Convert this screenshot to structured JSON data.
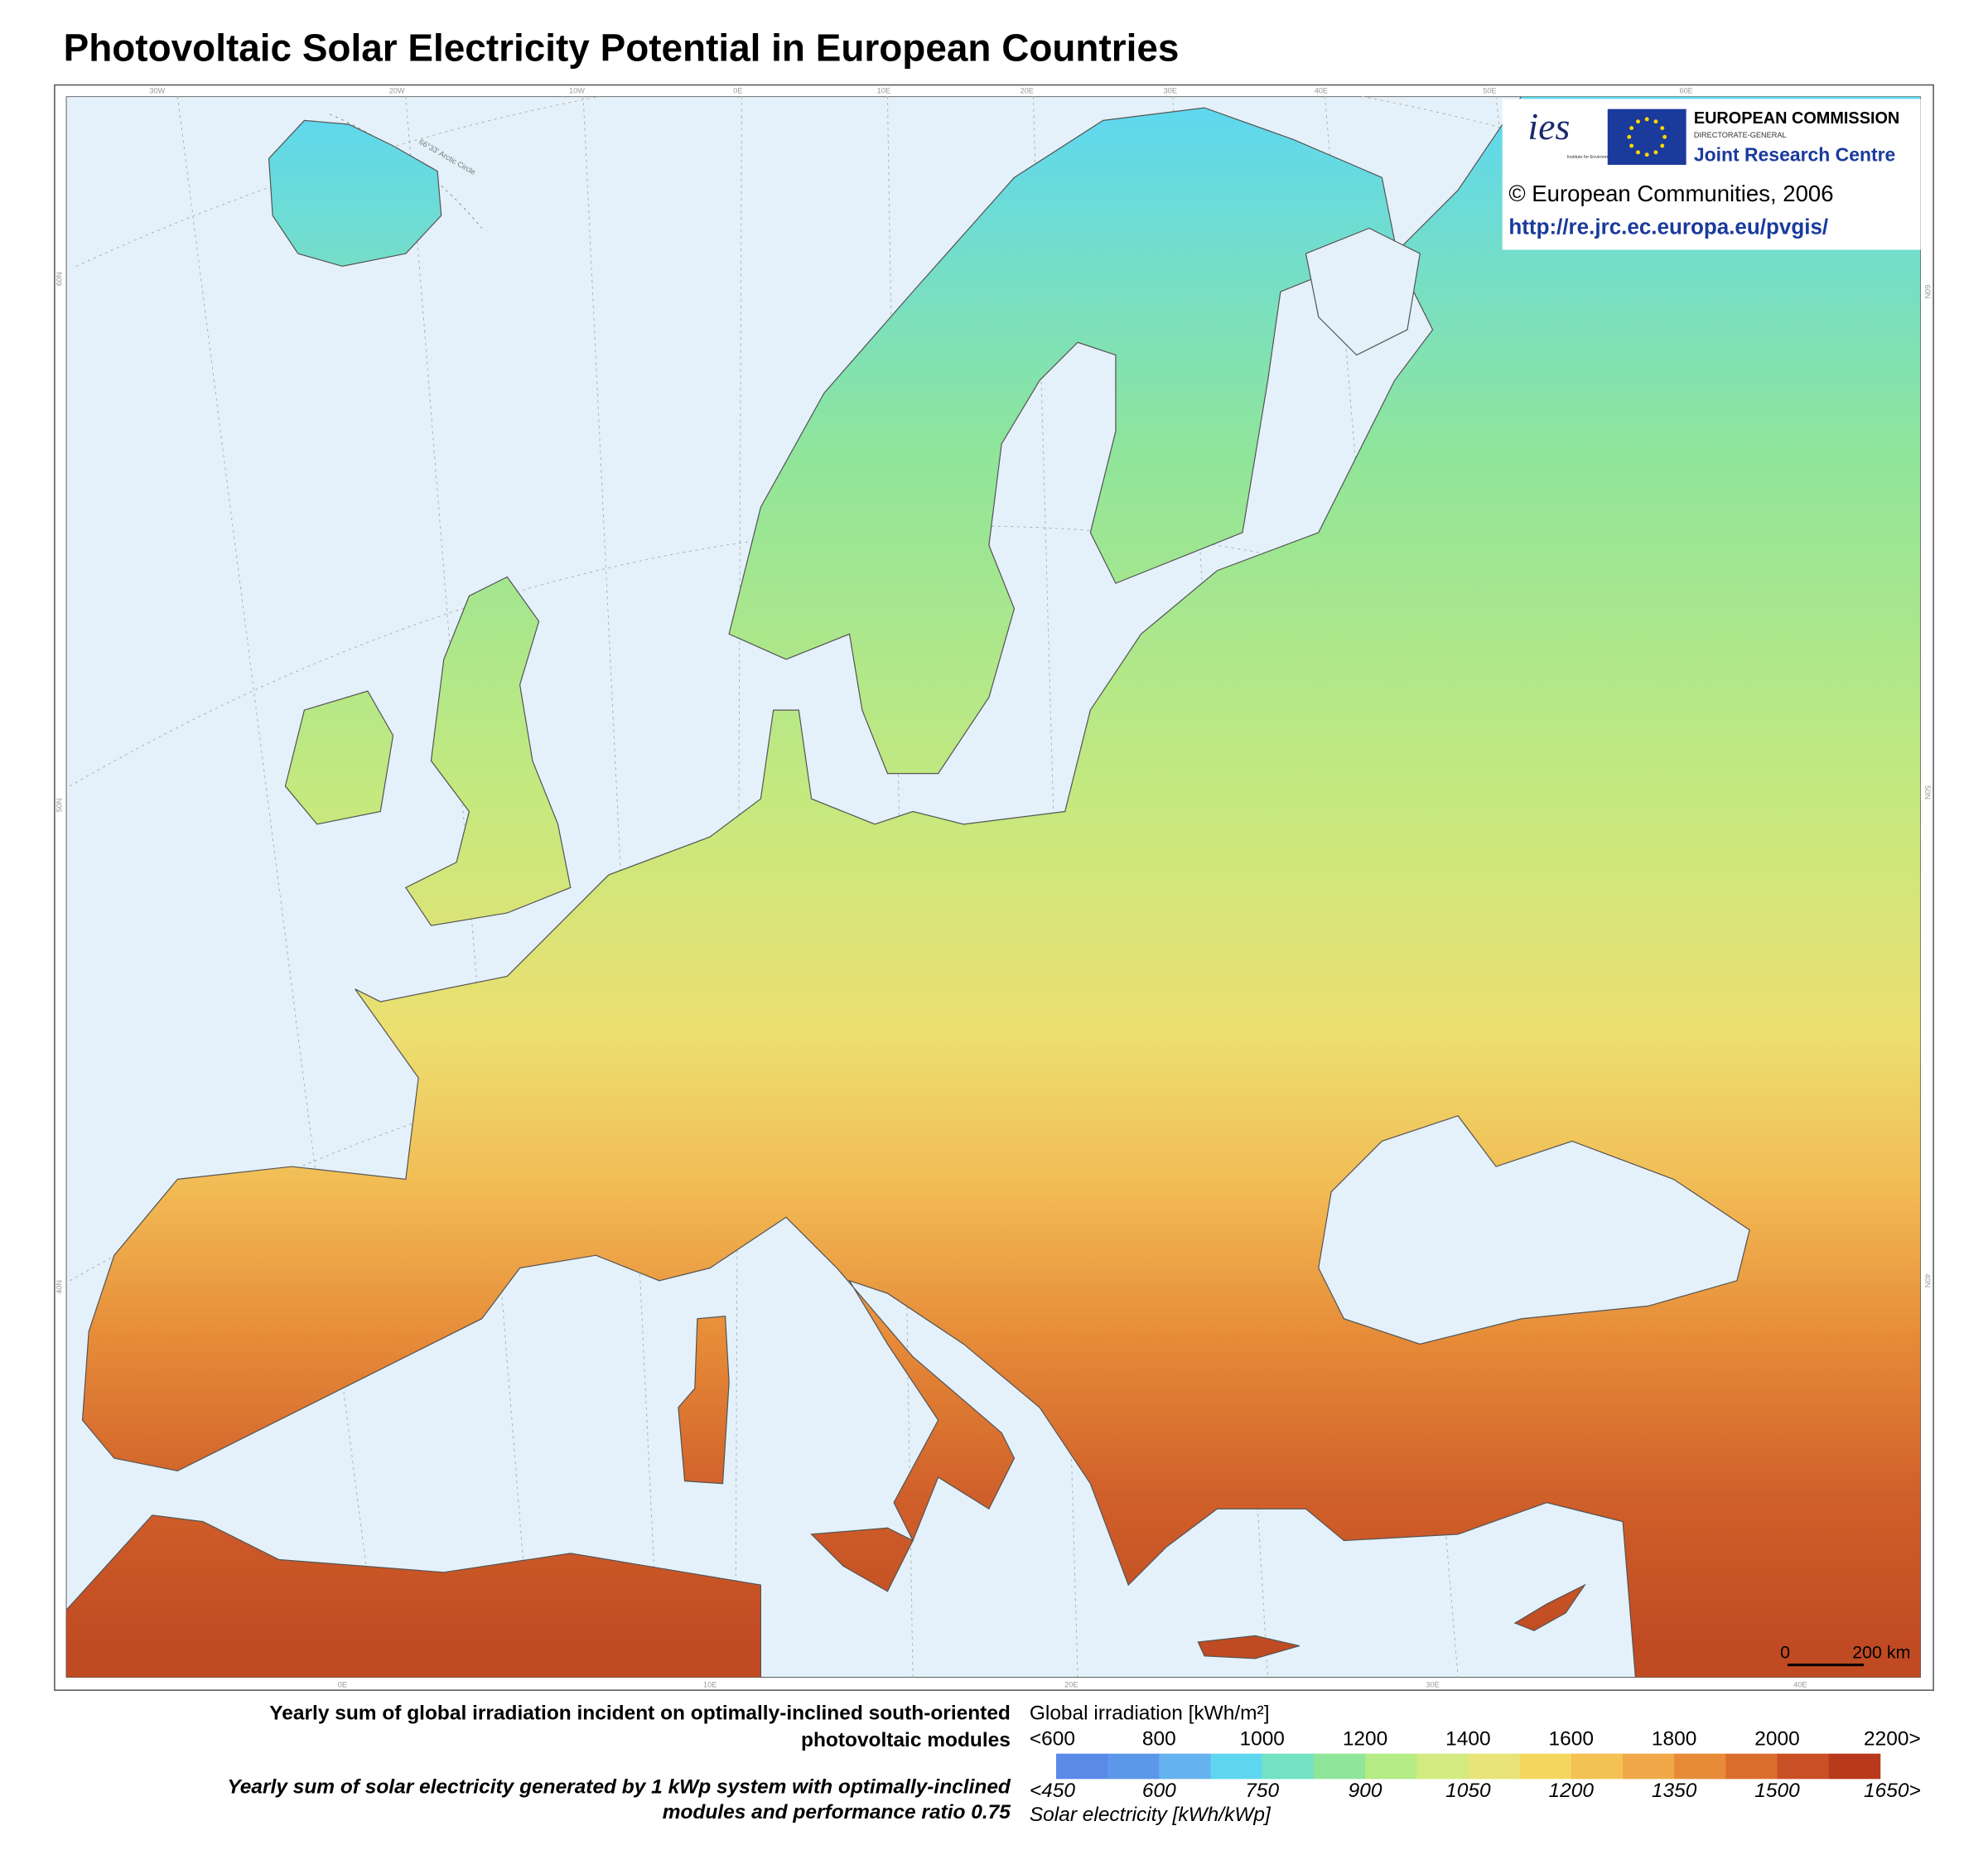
{
  "header": {
    "title": "Photovoltaic Solar Electricity Potential in European Countries"
  },
  "logo": {
    "ies": "ies",
    "ies_caption": "Institute for Environment and Sustainability",
    "commission": "EUROPEAN COMMISSION",
    "directorate": "DIRECTORATE-GENERAL",
    "jrc": "Joint Research Centre",
    "copyright": "© European Communities, 2006",
    "url": "http://re.jrc.ec.europa.eu/pvgis/"
  },
  "map": {
    "arctic_circle": "66°33' Arctic Circle",
    "top_labels": [
      "30W",
      "20W",
      "10W",
      "0E",
      "10E",
      "20E",
      "30E",
      "40E",
      "50E",
      "60E"
    ],
    "bottom_labels": [
      "0E",
      "10E",
      "20E",
      "30E",
      "40E"
    ],
    "left_labels": [
      "60N",
      "50N",
      "40N"
    ],
    "right_labels": [
      "60N",
      "50N",
      "40N"
    ],
    "scale_zero": "0",
    "scale_label": "200 km"
  },
  "legend": {
    "caption_top_1": "Yearly sum of global irradiation incident on optimally-inclined south-oriented",
    "caption_top_2": "photovoltaic modules",
    "caption_bottom_1": "Yearly sum of solar electricity generated by 1 kWp system with optimally-inclined",
    "caption_bottom_2": "modules and performance ratio 0.75",
    "top_title": "Global irradiation [kWh/m²]",
    "top_labels": [
      "<600",
      "800",
      "1000",
      "1200",
      "1400",
      "1600",
      "1800",
      "2000",
      "2200>"
    ],
    "bottom_labels": [
      "<450",
      "600",
      "750",
      "900",
      "1050",
      "1200",
      "1350",
      "1500",
      "1650>"
    ],
    "bottom_title": "Solar electricity [kWh/kWp]",
    "colors": [
      "#5a8ae8",
      "#5b98ea",
      "#66b2ee",
      "#5fd6ef",
      "#72e2c2",
      "#8fe69a",
      "#b4eb84",
      "#d3ea80",
      "#e8e47a",
      "#f5d760",
      "#f4c155",
      "#f0a848",
      "#e78b38",
      "#db6e2e",
      "#c95024",
      "#b8391b"
    ]
  }
}
